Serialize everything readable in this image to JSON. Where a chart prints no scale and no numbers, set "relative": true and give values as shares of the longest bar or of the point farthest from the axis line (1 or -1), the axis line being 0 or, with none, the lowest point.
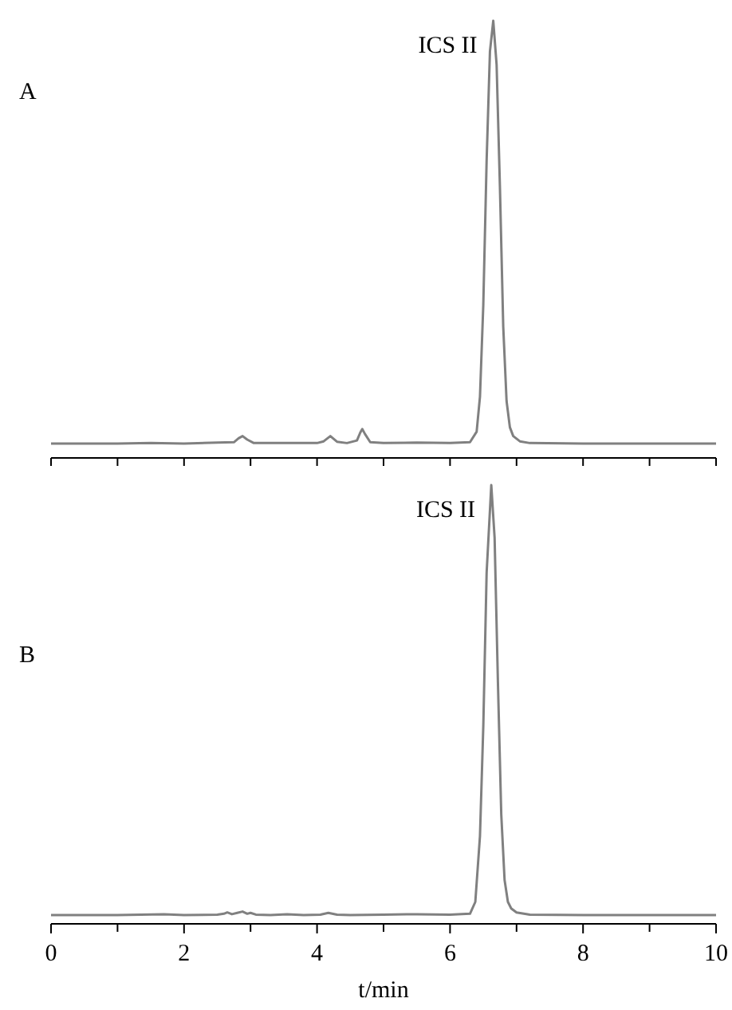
{
  "chart_data": [
    {
      "type": "line",
      "title": "A",
      "relative": true,
      "xlim": [
        0,
        10
      ],
      "xticks": [
        {
          "value": 0,
          "label": null
        },
        {
          "value": 1,
          "label": null
        },
        {
          "value": 2,
          "label": null
        },
        {
          "value": 3,
          "label": null
        },
        {
          "value": 4,
          "label": null
        },
        {
          "value": 5,
          "label": null
        },
        {
          "value": 6,
          "label": null
        },
        {
          "value": 7,
          "label": null
        },
        {
          "value": 8,
          "label": null
        },
        {
          "value": 9,
          "label": null
        },
        {
          "value": 10,
          "label": null
        }
      ],
      "tick_labels": false,
      "annotations": [
        {
          "text": "ICS II",
          "x": 6.65,
          "y": 1
        }
      ],
      "series": [
        {
          "color": "#808080",
          "x": [
            0,
            1,
            1.5,
            2,
            2.5,
            2.75,
            2.82,
            2.88,
            2.95,
            3.05,
            3.5,
            4,
            4.1,
            4.2,
            4.3,
            4.45,
            4.6,
            4.65,
            4.68,
            4.72,
            4.8,
            5,
            5.5,
            6,
            6.3,
            6.4,
            6.45,
            6.5,
            6.55,
            6.6,
            6.65,
            6.7,
            6.75,
            6.8,
            6.85,
            6.9,
            6.95,
            7.05,
            7.2,
            8,
            9,
            10
          ],
          "values": [
            0.033,
            0.033,
            0.034,
            0.033,
            0.035,
            0.036,
            0.045,
            0.05,
            0.042,
            0.034,
            0.034,
            0.034,
            0.038,
            0.05,
            0.037,
            0.034,
            0.04,
            0.058,
            0.066,
            0.055,
            0.036,
            0.034,
            0.035,
            0.034,
            0.036,
            0.06,
            0.14,
            0.35,
            0.68,
            0.93,
            1,
            0.9,
            0.62,
            0.3,
            0.13,
            0.07,
            0.05,
            0.038,
            0.034,
            0.033,
            0.033,
            0.033
          ]
        }
      ]
    },
    {
      "type": "line",
      "title": "B",
      "xlabel": "t/min",
      "relative": true,
      "xlim": [
        0,
        10
      ],
      "xticks": [
        0,
        {
          "value": 1,
          "label": null
        },
        2,
        {
          "value": 3,
          "label": null
        },
        4,
        {
          "value": 5,
          "label": null
        },
        6,
        {
          "value": 7,
          "label": null
        },
        8,
        {
          "value": 9,
          "label": null
        },
        10
      ],
      "tick_labels": "x",
      "annotations": [
        {
          "text": "ICS II",
          "x": 6.62,
          "y": 1
        }
      ],
      "series": [
        {
          "color": "#808080",
          "x": [
            0,
            1,
            1.7,
            2,
            2.5,
            2.6,
            2.65,
            2.72,
            2.8,
            2.88,
            2.95,
            3.0,
            3.08,
            3.3,
            3.55,
            3.8,
            4.05,
            4.17,
            4.3,
            4.5,
            5,
            5.5,
            6,
            6.3,
            6.38,
            6.45,
            6.5,
            6.55,
            6.62,
            6.67,
            6.72,
            6.77,
            6.82,
            6.87,
            6.92,
            7.0,
            7.2,
            8,
            9,
            10
          ],
          "values": [
            0.02,
            0.02,
            0.022,
            0.02,
            0.021,
            0.023,
            0.026,
            0.022,
            0.025,
            0.028,
            0.023,
            0.025,
            0.021,
            0.02,
            0.022,
            0.02,
            0.021,
            0.025,
            0.021,
            0.02,
            0.021,
            0.022,
            0.021,
            0.023,
            0.05,
            0.2,
            0.45,
            0.8,
            1,
            0.88,
            0.55,
            0.25,
            0.1,
            0.05,
            0.035,
            0.026,
            0.021,
            0.02,
            0.02,
            0.02
          ]
        }
      ]
    }
  ]
}
